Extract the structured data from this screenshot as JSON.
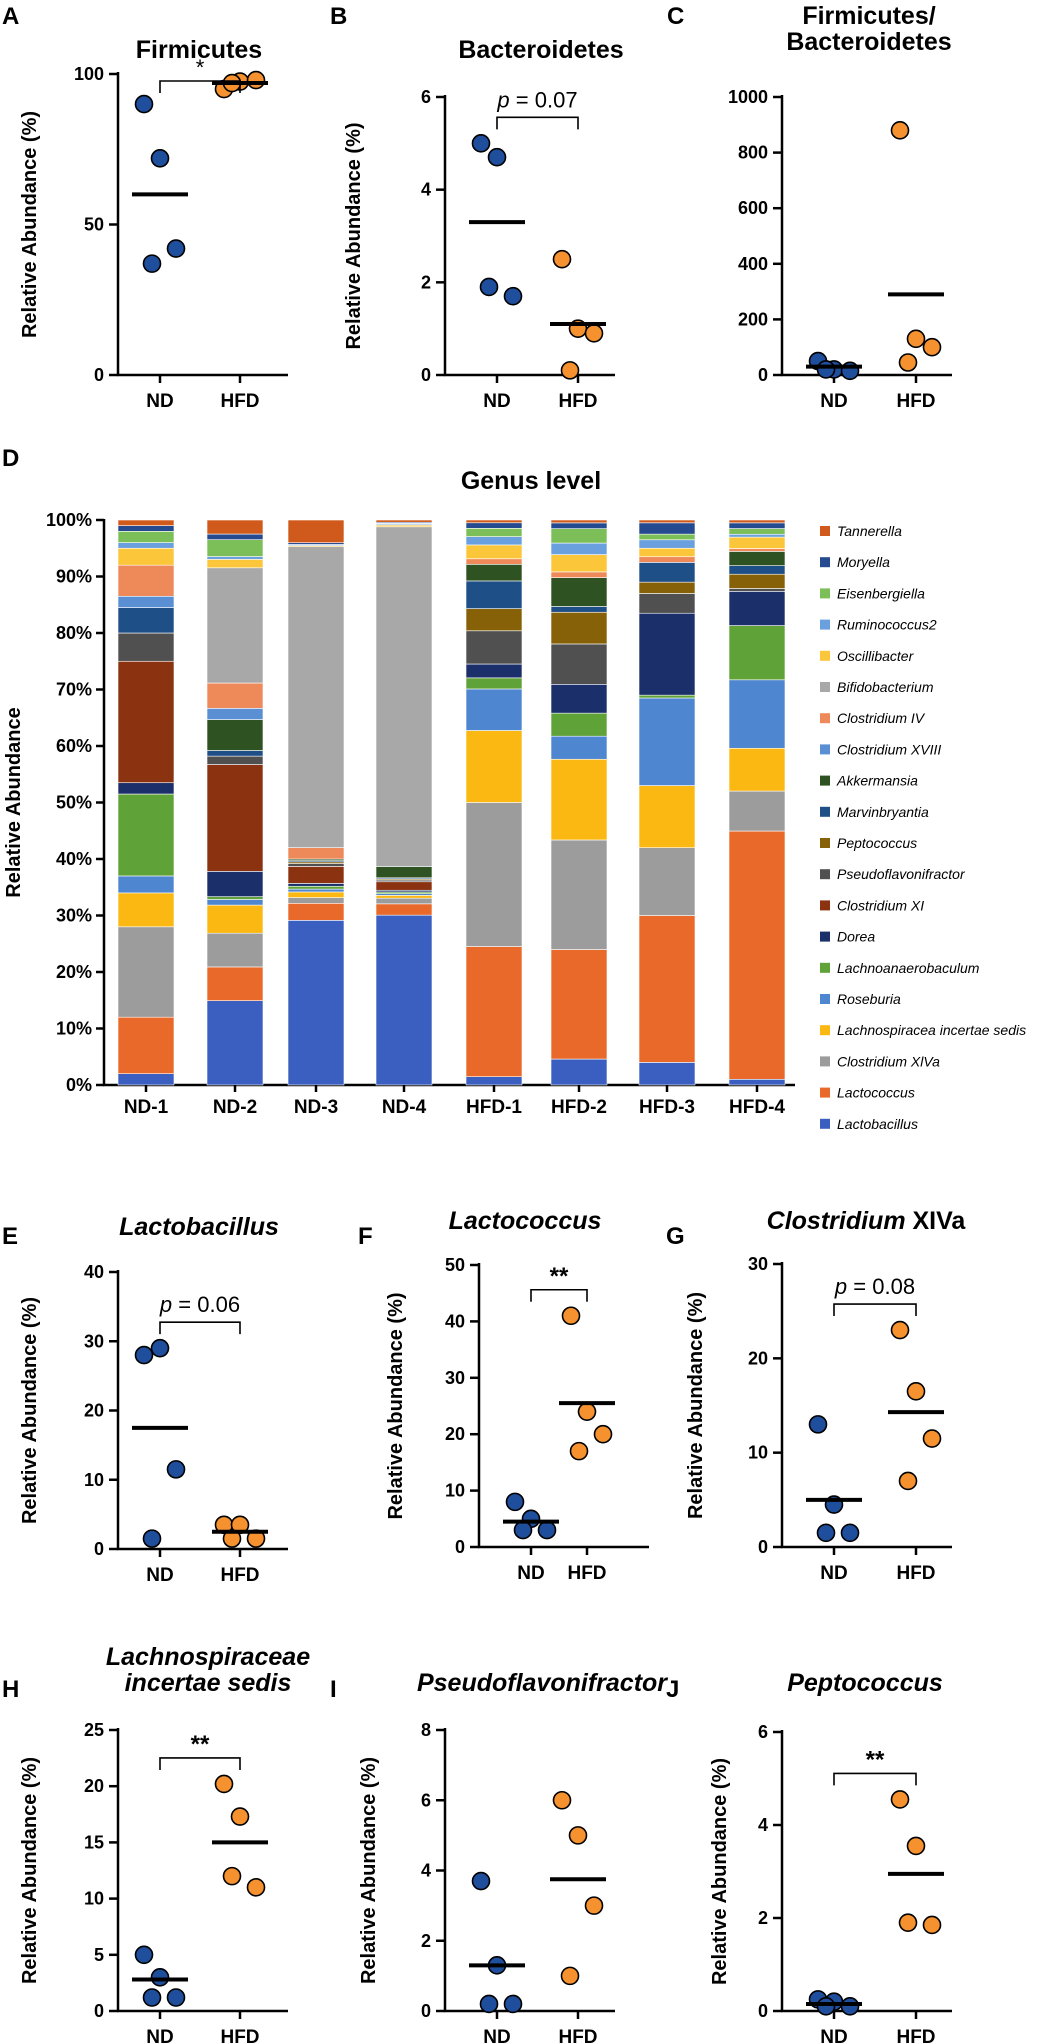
{
  "colors": {
    "nd": "#1f4e9c",
    "hfd": "#f5922f",
    "point_stroke": "#000000",
    "axis": "#000000"
  },
  "panel_letters": [
    "A",
    "B",
    "C",
    "D",
    "E",
    "F",
    "G",
    "H",
    "I",
    "J"
  ],
  "chart_data": [
    {
      "letter": "A",
      "type": "scatter",
      "title": [
        "Firmicutes"
      ],
      "title_italic": false,
      "ylabel": "Relative Abundance (%)",
      "ylim": [
        0,
        100
      ],
      "yticks": [
        0,
        50,
        100
      ],
      "categories": [
        "ND",
        "HFD"
      ],
      "series": [
        {
          "name": "ND",
          "values": [
            90,
            72,
            42,
            37
          ],
          "mean": 60
        },
        {
          "name": "HFD",
          "values": [
            95,
            97.5,
            98,
            97
          ],
          "mean": 97
        }
      ],
      "significance": {
        "label": "*",
        "bold": false
      }
    },
    {
      "letter": "B",
      "type": "scatter",
      "title": [
        "Bacteroidetes"
      ],
      "title_italic": false,
      "ylabel": "Relative Abundance (%)",
      "ylim": [
        0,
        6
      ],
      "yticks": [
        0,
        2,
        4,
        6
      ],
      "categories": [
        "ND",
        "HFD"
      ],
      "series": [
        {
          "name": "ND",
          "values": [
            5.0,
            4.7,
            1.7,
            1.9
          ],
          "mean": 3.3
        },
        {
          "name": "HFD",
          "values": [
            2.5,
            1.0,
            0.9,
            0.1
          ],
          "mean": 1.1
        }
      ],
      "significance": {
        "label": "p = 0.07",
        "p_prefix": "p",
        "p_rest": " = 0.07",
        "bold": false
      }
    },
    {
      "letter": "C",
      "type": "scatter",
      "title": [
        "Firmicutes/",
        "Bacteroidetes"
      ],
      "title_italic": false,
      "ylabel": "",
      "ylim": [
        0,
        1000
      ],
      "yticks": [
        0,
        200,
        400,
        600,
        800,
        1000
      ],
      "categories": [
        "ND",
        "HFD"
      ],
      "series": [
        {
          "name": "ND",
          "values": [
            50,
            20,
            15,
            20
          ],
          "mean": 30
        },
        {
          "name": "HFD",
          "values": [
            880,
            130,
            100,
            45
          ],
          "mean": 290
        }
      ],
      "significance": null
    },
    {
      "letter": "D",
      "type": "bar",
      "stacked": true,
      "title": [
        "Genus level"
      ],
      "ylabel": "Relative Abundance",
      "yticks": [
        "0%",
        "10%",
        "20%",
        "30%",
        "40%",
        "50%",
        "60%",
        "70%",
        "80%",
        "90%",
        "100%"
      ],
      "categories": [
        "ND-1",
        "ND-2",
        "ND-3",
        "ND-4",
        "HFD-1",
        "HFD-2",
        "HFD-3",
        "HFD-4"
      ],
      "series": [
        {
          "name": "Lactobacillus",
          "color": "#3b5fc0",
          "values": [
            2,
            15,
            29,
            30,
            1.5,
            4.5,
            4,
            1
          ]
        },
        {
          "name": "Lactococcus",
          "color": "#e8692a",
          "values": [
            10,
            6,
            3,
            2,
            23.5,
            19,
            26,
            43.5
          ]
        },
        {
          "name": "Clostridium XlVa",
          "color": "#9c9c9c",
          "values": [
            16,
            6,
            1,
            1,
            26,
            19,
            12,
            7
          ]
        },
        {
          "name": "Lachnospiracea incertae sedis",
          "color": "#fbb813",
          "values": [
            6,
            5,
            1,
            0.5,
            13,
            14,
            11,
            7.5
          ]
        },
        {
          "name": "Roseburia",
          "color": "#4f86d0",
          "values": [
            3,
            1,
            0.5,
            0.3,
            7.5,
            4,
            15.5,
            12
          ]
        },
        {
          "name": "Lachnoanaerobaculum",
          "color": "#5fa238",
          "values": [
            14.5,
            0.5,
            0.5,
            0.3,
            2,
            4,
            0.5,
            9.5
          ]
        },
        {
          "name": "Dorea",
          "color": "#1b2f6b",
          "values": [
            2,
            4.5,
            0.5,
            0.3,
            2.5,
            5,
            14.5,
            6
          ]
        },
        {
          "name": "Clostridium XI",
          "color": "#8b3210",
          "values": [
            21.5,
            19,
            3,
            1.5,
            0,
            0,
            0,
            0
          ]
        },
        {
          "name": "Pseudoflavonifractor",
          "color": "#505050",
          "values": [
            5,
            1.5,
            0.5,
            0.3,
            6,
            7,
            3.5,
            0.5
          ]
        },
        {
          "name": "Peptococcus",
          "color": "#876108",
          "values": [
            0,
            0,
            0.3,
            0.2,
            4,
            5.5,
            2,
            2.5
          ]
        },
        {
          "name": "Marvinbryantia",
          "color": "#1f4f87",
          "values": [
            4.5,
            1,
            0.2,
            0.2,
            5,
            1,
            3.5,
            1.5
          ]
        },
        {
          "name": "Akkermansia",
          "color": "#2f5222",
          "values": [
            0,
            5.5,
            0.3,
            2,
            3,
            5,
            0,
            2.5
          ]
        },
        {
          "name": "Clostridium XVIII",
          "color": "#5a8fd4",
          "values": [
            2,
            2,
            0,
            0,
            0,
            0,
            0,
            0
          ]
        },
        {
          "name": "Clostridium IV",
          "color": "#ee8a5a",
          "values": [
            5.5,
            4.5,
            2,
            0,
            1,
            1,
            1,
            0.5
          ]
        },
        {
          "name": "Bifidobacterium",
          "color": "#a8a8a8",
          "values": [
            0,
            20.5,
            53,
            60,
            0,
            0,
            0,
            0
          ]
        },
        {
          "name": "Oscillibacter",
          "color": "#fcc63a",
          "values": [
            3,
            1.5,
            0.2,
            0.3,
            2.5,
            3,
            1.5,
            2
          ]
        },
        {
          "name": "Ruminococcus2",
          "color": "#6aa0de",
          "values": [
            1,
            0.5,
            0.2,
            0.2,
            1.5,
            2,
            1.5,
            0.5
          ]
        },
        {
          "name": "Eisenbergiella",
          "color": "#7cbf59",
          "values": [
            2,
            3,
            0,
            0.1,
            1.5,
            2.5,
            1,
            1
          ]
        },
        {
          "name": "Moryella",
          "color": "#254a8f",
          "values": [
            1,
            1,
            0.3,
            0.2,
            1,
            1,
            2,
            1
          ]
        },
        {
          "name": "Tannerella",
          "color": "#cf5a1c",
          "values": [
            1,
            2.5,
            4,
            0.4,
            0.5,
            0.5,
            0.5,
            0.5
          ]
        }
      ]
    },
    {
      "letter": "E",
      "type": "scatter",
      "title": [
        "Lactobacillus"
      ],
      "title_italic": true,
      "ylabel": "Relative Abundance (%)",
      "ylim": [
        0,
        40
      ],
      "yticks": [
        0,
        10,
        20,
        30,
        40
      ],
      "categories": [
        "ND",
        "HFD"
      ],
      "series": [
        {
          "name": "ND",
          "values": [
            28,
            29,
            11.5,
            1.5
          ],
          "mean": 17.5
        },
        {
          "name": "HFD",
          "values": [
            3.5,
            3.5,
            1.5,
            1.5
          ],
          "mean": 2.5
        }
      ],
      "significance": {
        "label": "p = 0.06",
        "p_prefix": "p",
        "p_rest": " = 0.06",
        "bold": false
      }
    },
    {
      "letter": "F",
      "type": "scatter",
      "title": [
        "Lactococcus"
      ],
      "title_italic": true,
      "ylabel": "Relative Abundance (%)",
      "ylim": [
        0,
        50
      ],
      "yticks": [
        0,
        10,
        20,
        30,
        40,
        50
      ],
      "categories": [
        "ND",
        "HFD"
      ],
      "series": [
        {
          "name": "ND",
          "values": [
            8,
            5,
            3,
            3
          ],
          "mean": 4.5
        },
        {
          "name": "HFD",
          "values": [
            41,
            24,
            20,
            17
          ],
          "mean": 25.5
        }
      ],
      "significance": {
        "label": "**",
        "bold": true
      }
    },
    {
      "letter": "G",
      "type": "scatter",
      "title": [
        "Clostridium XIVa"
      ],
      "title_italic": true,
      "title_plain_suffix": " XIVa",
      "title_italic_part": "Clostridium",
      "ylabel": "Relative Abundance (%)",
      "ylim": [
        0,
        30
      ],
      "yticks": [
        0,
        10,
        20,
        30
      ],
      "categories": [
        "ND",
        "HFD"
      ],
      "series": [
        {
          "name": "ND",
          "values": [
            13,
            4.5,
            1.5,
            1.5
          ],
          "mean": 5
        },
        {
          "name": "HFD",
          "values": [
            23,
            16.5,
            11.5,
            7
          ],
          "mean": 14.3
        }
      ],
      "significance": {
        "label": "p = 0.08",
        "p_prefix": "p",
        "p_rest": " = 0.08",
        "bold": false
      }
    },
    {
      "letter": "H",
      "type": "scatter",
      "title": [
        "Lachnospiraceae",
        "incertae sedis"
      ],
      "title_italic": true,
      "ylabel": "Relative Abundance (%)",
      "ylim": [
        0,
        25
      ],
      "yticks": [
        0,
        5,
        10,
        15,
        20,
        25
      ],
      "categories": [
        "ND",
        "HFD"
      ],
      "series": [
        {
          "name": "ND",
          "values": [
            5,
            3,
            1.2,
            1.2
          ],
          "mean": 2.8
        },
        {
          "name": "HFD",
          "values": [
            20.2,
            17.3,
            11,
            12
          ],
          "mean": 15
        }
      ],
      "significance": {
        "label": "**",
        "bold": true
      }
    },
    {
      "letter": "I",
      "type": "scatter",
      "title": [
        "Pseudoflavonifractor"
      ],
      "title_italic": true,
      "ylabel": "Relative Abundance (%)",
      "ylim": [
        0,
        8
      ],
      "yticks": [
        0,
        2,
        4,
        6,
        8
      ],
      "categories": [
        "ND",
        "HFD"
      ],
      "series": [
        {
          "name": "ND",
          "values": [
            3.7,
            1.3,
            0.2,
            0.2
          ],
          "mean": 1.3
        },
        {
          "name": "HFD",
          "values": [
            6,
            5,
            3,
            1
          ],
          "mean": 3.75
        }
      ],
      "significance": null
    },
    {
      "letter": "J",
      "type": "scatter",
      "title": [
        "Peptococcus"
      ],
      "title_italic": true,
      "ylabel": "Relative Abundance (%)",
      "ylim": [
        0,
        6
      ],
      "yticks": [
        0,
        2,
        4,
        6
      ],
      "categories": [
        "ND",
        "HFD"
      ],
      "series": [
        {
          "name": "ND",
          "values": [
            0.25,
            0.2,
            0.1,
            0.1
          ],
          "mean": 0.15
        },
        {
          "name": "HFD",
          "values": [
            4.55,
            3.55,
            1.85,
            1.9
          ],
          "mean": 2.95
        }
      ],
      "significance": {
        "label": "**",
        "bold": true
      }
    }
  ]
}
